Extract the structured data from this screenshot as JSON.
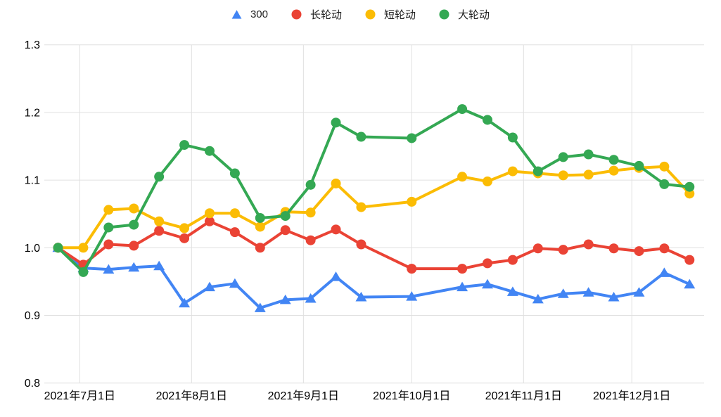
{
  "chart_data": {
    "type": "line",
    "title": "",
    "legend_position": "top",
    "grid": true,
    "gridline_color": "#e0e0e0",
    "axis_label_color": "#000000",
    "legend_text_color": "#212121",
    "background_color": "#ffffff",
    "x_dates": [
      "2021-06-25",
      "2021-07-02",
      "2021-07-09",
      "2021-07-16",
      "2021-07-23",
      "2021-07-30",
      "2021-08-06",
      "2021-08-13",
      "2021-08-20",
      "2021-08-27",
      "2021-09-03",
      "2021-09-10",
      "2021-09-17",
      "2021-10-01",
      "2021-10-15",
      "2021-10-22",
      "2021-10-29",
      "2021-11-05",
      "2021-11-12",
      "2021-11-19",
      "2021-11-26",
      "2021-12-03",
      "2021-12-10",
      "2021-12-17"
    ],
    "series": [
      {
        "name": "300",
        "color": "#4285f4",
        "marker": "triangle",
        "values": [
          1.0,
          0.97,
          0.968,
          0.971,
          0.973,
          0.918,
          0.942,
          0.947,
          0.911,
          0.923,
          0.925,
          0.957,
          0.927,
          0.928,
          0.942,
          0.946,
          0.935,
          0.924,
          0.932,
          0.934,
          0.927,
          0.934,
          0.963,
          0.946
        ]
      },
      {
        "name": "长轮动",
        "color": "#ea4335",
        "marker": "circle",
        "values": [
          1.0,
          0.975,
          1.005,
          1.003,
          1.025,
          1.014,
          1.039,
          1.023,
          1.0,
          1.026,
          1.011,
          1.027,
          1.005,
          0.969,
          0.969,
          0.977,
          0.982,
          0.999,
          0.997,
          1.005,
          0.999,
          0.995,
          0.999,
          0.982
        ]
      },
      {
        "name": "短轮动",
        "color": "#fbbc04",
        "marker": "circle",
        "values": [
          1.0,
          1.0,
          1.056,
          1.058,
          1.039,
          1.029,
          1.051,
          1.051,
          1.031,
          1.053,
          1.052,
          1.095,
          1.06,
          1.068,
          1.105,
          1.098,
          1.113,
          1.11,
          1.107,
          1.108,
          1.114,
          1.118,
          1.12,
          1.08
        ]
      },
      {
        "name": "大轮动",
        "color": "#34a853",
        "marker": "circle",
        "values": [
          1.0,
          0.964,
          1.03,
          1.034,
          1.105,
          1.152,
          1.143,
          1.11,
          1.044,
          1.047,
          1.093,
          1.185,
          1.164,
          1.162,
          1.205,
          1.189,
          1.163,
          1.113,
          1.134,
          1.138,
          1.13,
          1.121,
          1.094,
          1.09
        ]
      }
    ],
    "x_axis": {
      "ticks": [
        {
          "date": "2021-07-01",
          "label": "2021年7月1日"
        },
        {
          "date": "2021-08-01",
          "label": "2021年8月1日"
        },
        {
          "date": "2021-09-01",
          "label": "2021年9月1日"
        },
        {
          "date": "2021-10-01",
          "label": "2021年10月1日"
        },
        {
          "date": "2021-11-01",
          "label": "2021年11月1日"
        },
        {
          "date": "2021-12-01",
          "label": "2021年12月1日"
        }
      ]
    },
    "y_axis": {
      "min": 0.8,
      "max": 1.3,
      "ticks": [
        "0.8",
        "0.9",
        "1.0",
        "1.1",
        "1.2",
        "1.3"
      ]
    }
  }
}
